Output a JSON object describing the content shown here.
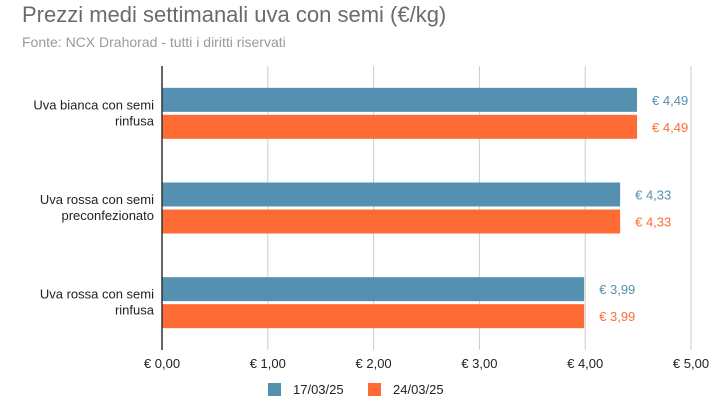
{
  "chart_data": {
    "type": "bar",
    "orientation": "horizontal",
    "title": "Prezzi medi settimanali uva con semi (€/kg)",
    "subtitle": "Fonte: NCX Drahorad - tutti i diritti riservati",
    "categories": [
      [
        "Uva bianca con semi",
        "rinfusa"
      ],
      [
        "Uva rossa con semi",
        "preconfezionato"
      ],
      [
        "Uva rossa con semi",
        "rinfusa"
      ]
    ],
    "series": [
      {
        "name": "17/03/25",
        "color": "#5590b1",
        "values": [
          4.49,
          4.33,
          3.99
        ],
        "labels": [
          "€ 4,49",
          "€ 4,33",
          "€ 3,99"
        ]
      },
      {
        "name": "24/03/25",
        "color": "#ff6b35",
        "values": [
          4.49,
          4.33,
          3.99
        ],
        "labels": [
          "€ 4,49",
          "€ 4,33",
          "€ 3,99"
        ]
      }
    ],
    "xlim": [
      0,
      5
    ],
    "xticks": [
      0,
      1,
      2,
      3,
      4,
      5
    ],
    "xtick_labels": [
      "€ 0,00",
      "€ 1,00",
      "€ 2,00",
      "€ 3,00",
      "€ 4,00",
      "€ 5,00"
    ],
    "grid": true,
    "legend_position": "bottom"
  }
}
